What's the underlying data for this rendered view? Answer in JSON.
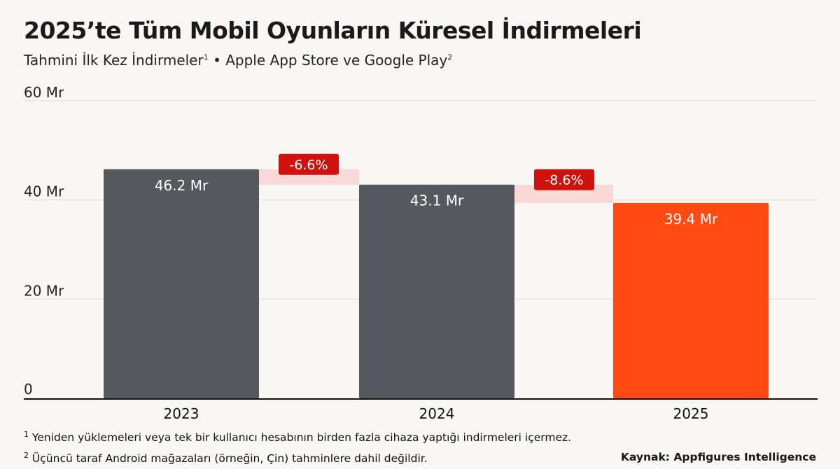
{
  "title": "2025’te Tüm Mobil Oyunların Küresel İndirmeleri",
  "subtitle": {
    "part1": "Tahmini İlk Kez İndirmeler",
    "sup1": "1",
    "part2": " • Apple App Store ve Google Play",
    "sup2": "2"
  },
  "footnotes": [
    {
      "mark": "1",
      "text": " Yeniden yüklemeleri veya tek bir kullanıcı hesabının birden fazla cihaza yaptığı indirmeleri içermez."
    },
    {
      "mark": "2",
      "text": " Üçüncü taraf Android mağazaları (örneğin, Çin) tahminlere dahil değildir."
    }
  ],
  "source": "Kaynak: Appfigures Intelligence",
  "colors": {
    "bar_default": "#55595e",
    "bar_highlight": "#ff4a14",
    "badge": "#d0120f",
    "band": "#f9d3d1",
    "grid": "#dcdcdc"
  },
  "chart_data": {
    "type": "bar",
    "categories": [
      "2023",
      "2024",
      "2025"
    ],
    "values": [
      46.2,
      43.1,
      39.4
    ],
    "data_labels": [
      "46.2 Mr",
      "43.1 Mr",
      "39.4 Mr"
    ],
    "highlight": "2025",
    "changes": [
      "-6.6%",
      "-8.6%"
    ],
    "ylim": [
      0,
      60
    ],
    "yticks": [
      0,
      20,
      40,
      60
    ],
    "ytick_labels": [
      "0",
      "20 Mr",
      "40 Mr",
      "60 Mr"
    ],
    "grid": true,
    "xlabel": "",
    "ylabel": ""
  }
}
